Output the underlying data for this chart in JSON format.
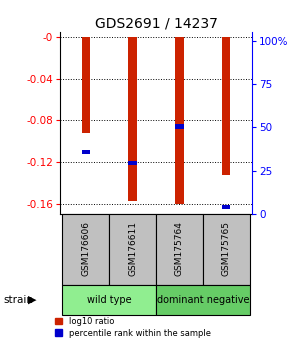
{
  "title": "GDS2691 / 14237",
  "samples": [
    "GSM176606",
    "GSM176611",
    "GSM175764",
    "GSM175765"
  ],
  "log10_ratio": [
    -0.092,
    -0.158,
    -0.16,
    -0.133
  ],
  "percentile_rank": [
    0.34,
    0.28,
    0.48,
    0.04
  ],
  "groups": [
    {
      "label": "wild type",
      "indices": [
        0,
        1
      ],
      "color": "#90EE90"
    },
    {
      "label": "dominant negative",
      "indices": [
        2,
        3
      ],
      "color": "#66CC66"
    }
  ],
  "group_label": "strain",
  "ylim_left": [
    -0.17,
    0.005
  ],
  "ylim_right": [
    0,
    105
  ],
  "yticks_left": [
    0,
    -0.04,
    -0.08,
    -0.12,
    -0.16
  ],
  "ytick_labels_left": [
    "-0",
    "-0.04",
    "-0.08",
    "-0.12",
    "-0.16"
  ],
  "yticks_right": [
    0,
    25,
    50,
    75,
    100
  ],
  "ytick_labels_right": [
    "0",
    "25",
    "50",
    "75",
    "100%"
  ],
  "bar_width": 0.18,
  "red_color": "#CC2200",
  "blue_color": "#0000CC",
  "bar_bg_color": "#C0C0C0",
  "legend_red": "log10 ratio",
  "legend_blue": "percentile rank within the sample",
  "grid_color": "#000000"
}
